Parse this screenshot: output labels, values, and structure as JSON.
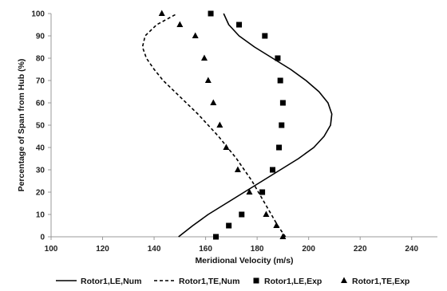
{
  "chart_data": {
    "type": "line",
    "xlabel": "Meridional Velocity (m/s)",
    "ylabel": "Percentage of Span from Hub (%)",
    "xlim": [
      100,
      250
    ],
    "ylim": [
      0,
      100
    ],
    "xticks": [
      100,
      120,
      140,
      160,
      180,
      200,
      220,
      240
    ],
    "yticks": [
      0,
      10,
      20,
      30,
      40,
      50,
      60,
      70,
      80,
      90,
      100
    ],
    "grid": false,
    "legend_position": "bottom",
    "series": [
      {
        "name": "Rotor1,LE,Num",
        "style": "solid-line",
        "color": "#000000",
        "points": [
          {
            "x": 149.5,
            "y": 0
          },
          {
            "x": 155,
            "y": 5
          },
          {
            "x": 161,
            "y": 10
          },
          {
            "x": 168,
            "y": 15
          },
          {
            "x": 175,
            "y": 20
          },
          {
            "x": 182,
            "y": 25
          },
          {
            "x": 189,
            "y": 30
          },
          {
            "x": 196,
            "y": 35
          },
          {
            "x": 202,
            "y": 40
          },
          {
            "x": 206,
            "y": 45
          },
          {
            "x": 208.5,
            "y": 50
          },
          {
            "x": 209,
            "y": 55
          },
          {
            "x": 207.5,
            "y": 60
          },
          {
            "x": 204,
            "y": 65
          },
          {
            "x": 199,
            "y": 70
          },
          {
            "x": 193,
            "y": 75
          },
          {
            "x": 186,
            "y": 80
          },
          {
            "x": 179,
            "y": 85
          },
          {
            "x": 173,
            "y": 90
          },
          {
            "x": 169,
            "y": 95
          },
          {
            "x": 167,
            "y": 100
          }
        ]
      },
      {
        "name": "Rotor1,TE,Num",
        "style": "dashed-line",
        "color": "#000000",
        "points": [
          {
            "x": 191,
            "y": 0
          },
          {
            "x": 188,
            "y": 5
          },
          {
            "x": 185.5,
            "y": 10
          },
          {
            "x": 183,
            "y": 15
          },
          {
            "x": 180.5,
            "y": 20
          },
          {
            "x": 178,
            "y": 25
          },
          {
            "x": 175,
            "y": 30
          },
          {
            "x": 172,
            "y": 35
          },
          {
            "x": 168.5,
            "y": 40
          },
          {
            "x": 165,
            "y": 45
          },
          {
            "x": 161,
            "y": 50
          },
          {
            "x": 157,
            "y": 55
          },
          {
            "x": 152.5,
            "y": 60
          },
          {
            "x": 148,
            "y": 65
          },
          {
            "x": 143.5,
            "y": 70
          },
          {
            "x": 140,
            "y": 75
          },
          {
            "x": 137,
            "y": 80
          },
          {
            "x": 135.5,
            "y": 85
          },
          {
            "x": 136.5,
            "y": 90
          },
          {
            "x": 141,
            "y": 95
          },
          {
            "x": 149,
            "y": 100
          }
        ]
      },
      {
        "name": "Rotor1,LE,Exp",
        "style": "square-marker",
        "color": "#000000",
        "points": [
          {
            "x": 164,
            "y": 0
          },
          {
            "x": 169,
            "y": 5
          },
          {
            "x": 174,
            "y": 10
          },
          {
            "x": 182,
            "y": 20
          },
          {
            "x": 186,
            "y": 30
          },
          {
            "x": 188.5,
            "y": 40
          },
          {
            "x": 189.5,
            "y": 50
          },
          {
            "x": 190,
            "y": 60
          },
          {
            "x": 189,
            "y": 70
          },
          {
            "x": 188,
            "y": 80
          },
          {
            "x": 183,
            "y": 90
          },
          {
            "x": 173,
            "y": 95
          },
          {
            "x": 162,
            "y": 100
          }
        ]
      },
      {
        "name": "Rotor1,TE,Exp",
        "style": "triangle-marker",
        "color": "#000000",
        "points": [
          {
            "x": 190,
            "y": 0
          },
          {
            "x": 187.5,
            "y": 5
          },
          {
            "x": 183.5,
            "y": 10
          },
          {
            "x": 177,
            "y": 20
          },
          {
            "x": 172.5,
            "y": 30
          },
          {
            "x": 168,
            "y": 40
          },
          {
            "x": 165.5,
            "y": 50
          },
          {
            "x": 163,
            "y": 60
          },
          {
            "x": 161,
            "y": 70
          },
          {
            "x": 159.5,
            "y": 80
          },
          {
            "x": 156,
            "y": 90
          },
          {
            "x": 150,
            "y": 95
          },
          {
            "x": 143,
            "y": 100
          }
        ]
      }
    ]
  }
}
